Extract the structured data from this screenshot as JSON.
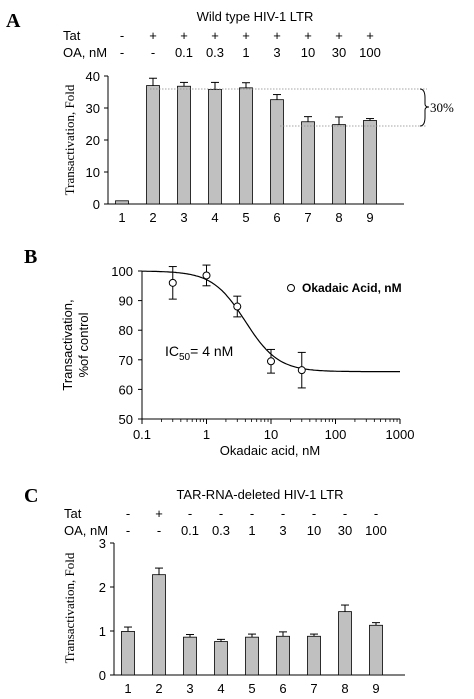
{
  "colors": {
    "bar": "#c0c0c0",
    "stroke": "#000000"
  },
  "chart_data": [
    {
      "panel_label": "A",
      "type": "bar",
      "title": "Wild type HIV-1 LTR",
      "row_labels": [
        "Tat",
        "OA, nM"
      ],
      "tat": [
        "-",
        "+",
        "+",
        "+",
        "+",
        "+",
        "+",
        "+",
        "+"
      ],
      "oa": [
        "-",
        "-",
        "0.1",
        "0.3",
        "1",
        "3",
        "10",
        "30",
        "100"
      ],
      "categories": [
        "1",
        "2",
        "3",
        "4",
        "5",
        "6",
        "7",
        "8",
        "9"
      ],
      "values": [
        1,
        37,
        36.8,
        35.8,
        36.3,
        32.6,
        25.7,
        24.8,
        26.1
      ],
      "errors": [
        0,
        2.3,
        1.2,
        2.2,
        1.6,
        1.6,
        1.6,
        2.4,
        0.6
      ],
      "ylabel": "Transactivation, Fold",
      "yticks": [
        "0",
        "10",
        "20",
        "30",
        "40"
      ],
      "ylim": [
        0,
        40
      ],
      "annotation": "30%"
    },
    {
      "panel_label": "B",
      "type": "scatter",
      "x": [
        0.3,
        1,
        3,
        10,
        30
      ],
      "y": [
        96,
        98.5,
        88,
        69.5,
        66.5
      ],
      "yerr": [
        5.5,
        3.5,
        3.5,
        4,
        6
      ],
      "fit": "sigmoidal dose-response, top 100, bottom 66, IC50 4 nM",
      "xlabel": "Okadaic acid, nM",
      "ylabel_line1": "Transactivation,",
      "ylabel_line2": "%of control",
      "xscale": "log",
      "xlim": [
        0.1,
        1000
      ],
      "ylim": [
        50,
        100
      ],
      "xticks": [
        "0.1",
        "1",
        "10",
        "100",
        "1000"
      ],
      "yticks": [
        "50",
        "60",
        "70",
        "80",
        "90",
        "100"
      ],
      "legend": "Okadaic Acid, nM",
      "ic50_label": "IC",
      "ic50_sub": "50",
      "ic50_value": "= 4 nM"
    },
    {
      "panel_label": "C",
      "type": "bar",
      "title": "TAR-RNA-deleted HIV-1 LTR",
      "row_labels": [
        "Tat",
        "OA, nM"
      ],
      "tat": [
        "-",
        "+",
        "-",
        "-",
        "-",
        "-",
        "-",
        "-",
        "-"
      ],
      "oa": [
        "-",
        "-",
        "0.1",
        "0.3",
        "1",
        "3",
        "10",
        "30",
        "100"
      ],
      "categories": [
        "1",
        "2",
        "3",
        "4",
        "5",
        "6",
        "7",
        "8",
        "9"
      ],
      "values": [
        0.99,
        2.28,
        0.86,
        0.76,
        0.86,
        0.88,
        0.88,
        1.44,
        1.13
      ],
      "errors": [
        0.1,
        0.15,
        0.06,
        0.05,
        0.07,
        0.1,
        0.05,
        0.15,
        0.06
      ],
      "ylabel": "Transactivation, Fold",
      "yticks": [
        "0",
        "1",
        "2",
        "3"
      ],
      "ylim": [
        0,
        3
      ]
    }
  ]
}
